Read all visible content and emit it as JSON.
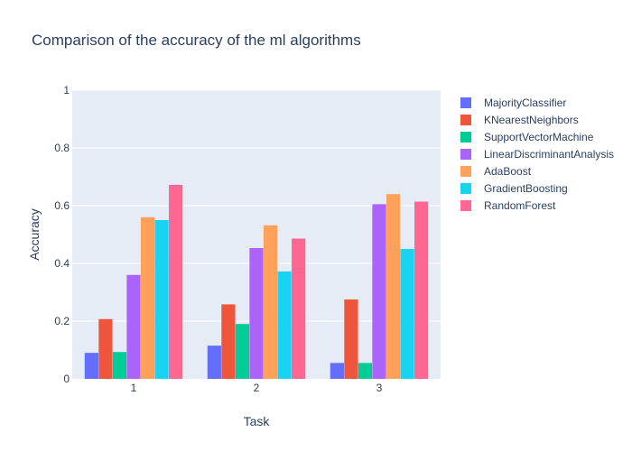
{
  "chart_data": {
    "type": "bar",
    "title": "Comparison of the accuracy of the ml algorithms",
    "xlabel": "Task",
    "ylabel": "Accuracy",
    "categories": [
      "1",
      "2",
      "3"
    ],
    "ylim": [
      0,
      1
    ],
    "yticks": [
      "0",
      "0.2",
      "0.4",
      "0.6",
      "0.8",
      "1"
    ],
    "grid": true,
    "legend_position": "right",
    "series": [
      {
        "name": "MajorityClassifier",
        "color": "#636efa",
        "values": [
          0.09,
          0.115,
          0.055
        ]
      },
      {
        "name": "KNearestNeighbors",
        "color": "#ef553b",
        "values": [
          0.207,
          0.258,
          0.275
        ]
      },
      {
        "name": "SupportVectorMachine",
        "color": "#00cc96",
        "values": [
          0.093,
          0.19,
          0.055
        ]
      },
      {
        "name": "LinearDiscriminantAnalysis",
        "color": "#ab63fa",
        "values": [
          0.36,
          0.453,
          0.605
        ]
      },
      {
        "name": "AdaBoost",
        "color": "#ffa15a",
        "values": [
          0.56,
          0.532,
          0.64
        ]
      },
      {
        "name": "GradientBoosting",
        "color": "#19d3f3",
        "values": [
          0.55,
          0.372,
          0.45
        ]
      },
      {
        "name": "RandomForest",
        "color": "#ff6692",
        "values": [
          0.672,
          0.486,
          0.614
        ]
      }
    ]
  }
}
